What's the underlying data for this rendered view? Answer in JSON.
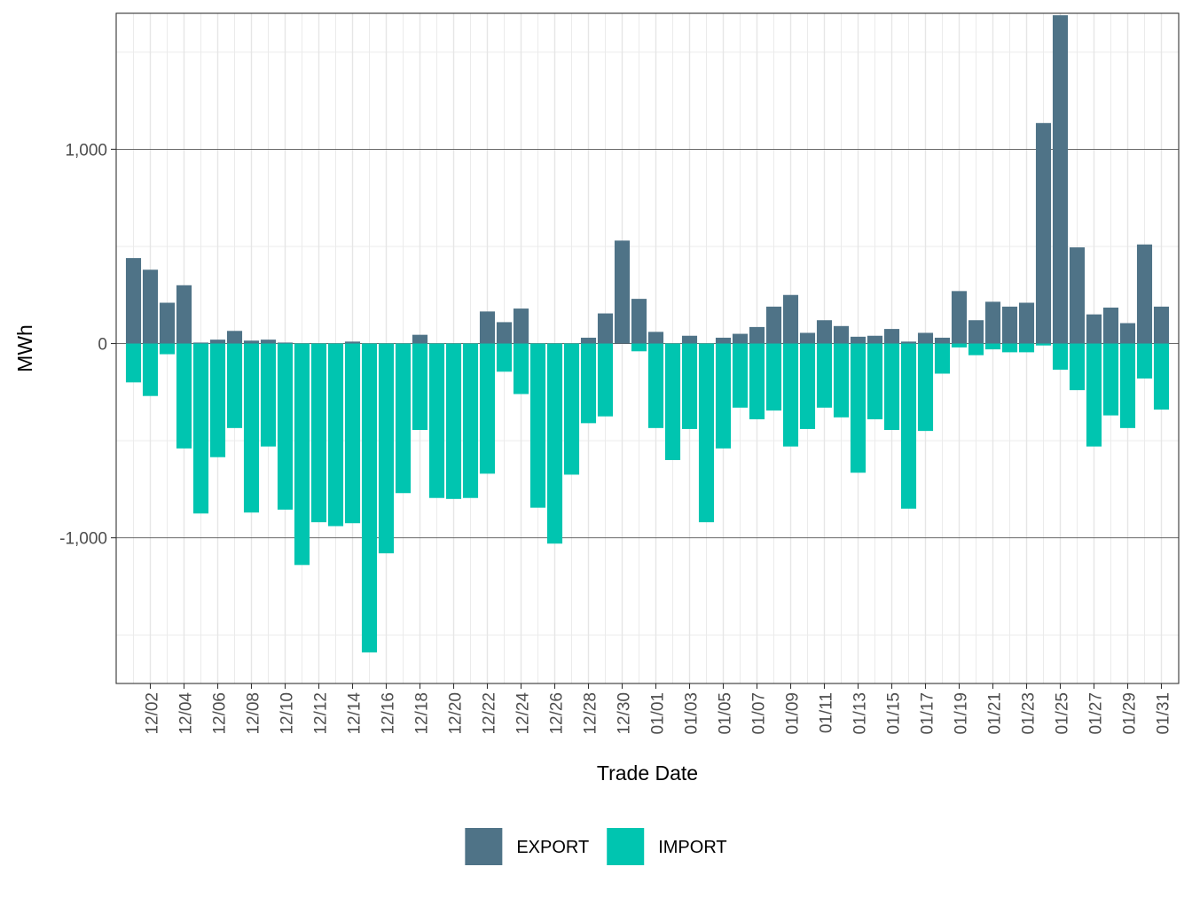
{
  "chart_data": {
    "type": "bar",
    "stacked": "diverging",
    "title": "",
    "xlabel": "Trade Date",
    "ylabel": "MWh",
    "ylim": [
      -1750,
      1700
    ],
    "yticks": [
      -1000,
      0,
      1000
    ],
    "ytick_labels": [
      "-1,000",
      "0",
      "1,000"
    ],
    "grid": true,
    "legend_position": "bottom",
    "categories": [
      "12/01",
      "12/02",
      "12/03",
      "12/04",
      "12/05",
      "12/06",
      "12/07",
      "12/08",
      "12/09",
      "12/10",
      "12/11",
      "12/12",
      "12/13",
      "12/14",
      "12/15",
      "12/16",
      "12/17",
      "12/18",
      "12/19",
      "12/20",
      "12/21",
      "12/22",
      "12/23",
      "12/24",
      "12/25",
      "12/26",
      "12/27",
      "12/28",
      "12/29",
      "12/30",
      "12/31",
      "01/01",
      "01/02",
      "01/03",
      "01/04",
      "01/05",
      "01/06",
      "01/07",
      "01/08",
      "01/09",
      "01/10",
      "01/11",
      "01/12",
      "01/13",
      "01/14",
      "01/15",
      "01/16",
      "01/17",
      "01/18",
      "01/19",
      "01/20",
      "01/21",
      "01/22",
      "01/23",
      "01/24",
      "01/25",
      "01/26",
      "01/27",
      "01/28",
      "01/29",
      "01/30",
      "01/31"
    ],
    "xtick_labels": [
      "12/02",
      "12/04",
      "12/06",
      "12/08",
      "12/10",
      "12/12",
      "12/14",
      "12/16",
      "12/18",
      "12/20",
      "12/22",
      "12/24",
      "12/26",
      "12/28",
      "12/30",
      "01/01",
      "01/03",
      "01/05",
      "01/07",
      "01/09",
      "01/11",
      "01/13",
      "01/15",
      "01/17",
      "01/19",
      "01/21",
      "01/23",
      "01/25",
      "01/27",
      "01/29",
      "01/31"
    ],
    "series": [
      {
        "name": "EXPORT",
        "color": "#4f7387",
        "values": [
          440,
          380,
          210,
          300,
          5,
          20,
          65,
          15,
          20,
          5,
          0,
          0,
          0,
          10,
          0,
          0,
          0,
          45,
          0,
          0,
          0,
          165,
          110,
          180,
          0,
          0,
          0,
          30,
          155,
          530,
          230,
          60,
          0,
          40,
          0,
          30,
          50,
          85,
          190,
          250,
          55,
          120,
          90,
          35,
          40,
          75,
          10,
          55,
          30,
          270,
          120,
          215,
          190,
          210,
          1135,
          1690,
          495,
          150,
          185,
          105,
          510,
          190
        ]
      },
      {
        "name": "IMPORT",
        "color": "#00c5b0",
        "values": [
          -200,
          -270,
          -55,
          -540,
          -875,
          -585,
          -435,
          -870,
          -530,
          -855,
          -1140,
          -920,
          -940,
          -925,
          -1590,
          -1080,
          -770,
          -445,
          -795,
          -800,
          -795,
          -670,
          -145,
          -260,
          -845,
          -1030,
          -675,
          -410,
          -375,
          0,
          -40,
          -435,
          -600,
          -440,
          -920,
          -540,
          -330,
          -390,
          -345,
          -530,
          -440,
          -330,
          -380,
          -665,
          -390,
          -445,
          -850,
          -450,
          -155,
          -20,
          -60,
          -30,
          -45,
          -45,
          -10,
          -135,
          -240,
          -530,
          -370,
          -435,
          -180,
          -340
        ]
      }
    ],
    "legend": [
      {
        "label": "EXPORT",
        "color": "#4f7387"
      },
      {
        "label": "IMPORT",
        "color": "#00c5b0"
      }
    ]
  }
}
